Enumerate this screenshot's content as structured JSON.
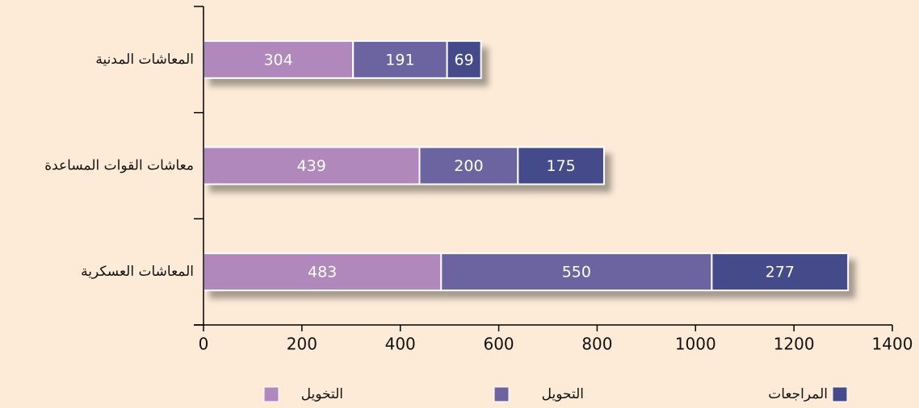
{
  "chart_data": {
    "type": "stacked_bar_horizontal",
    "categories": [
      "المعاشات المدنية",
      "معاشات القوات المساعدة",
      "المعاشات العسكرية"
    ],
    "series": [
      {
        "name": "التخويل",
        "color": "#b088bb",
        "values": [
          304,
          439,
          483
        ]
      },
      {
        "name": "التحويل",
        "color": "#6b64a0",
        "values": [
          191,
          200,
          550
        ]
      },
      {
        "name": "المراجعات",
        "color": "#454a8a",
        "values": [
          69,
          175,
          277
        ]
      }
    ],
    "xlim": [
      0,
      1400
    ],
    "xticks": [
      0,
      200,
      400,
      600,
      800,
      1000,
      1200,
      1400
    ],
    "legend": "bottom"
  }
}
